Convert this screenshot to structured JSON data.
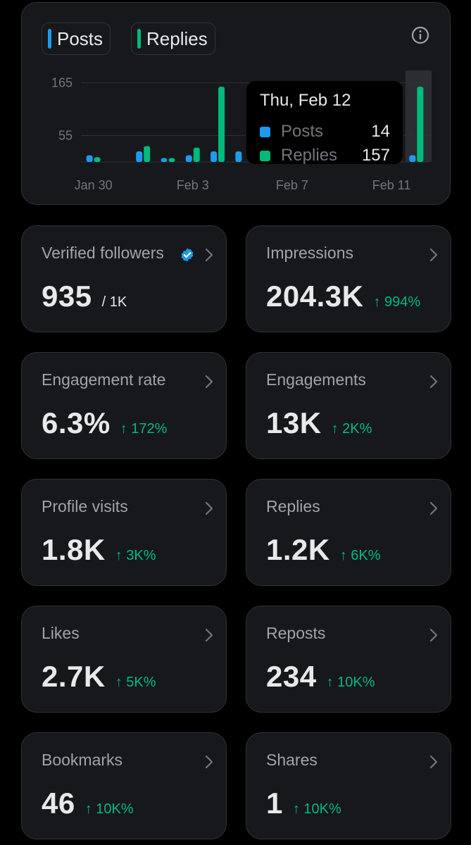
{
  "chart": {
    "legend": {
      "posts_label": "Posts",
      "replies_label": "Replies"
    },
    "colors": {
      "posts": "#1d9bf0",
      "replies": "#00ba7c"
    },
    "y_ticks": [
      "165",
      "55"
    ],
    "x_ticks": [
      "Jan 30",
      "Feb 3",
      "Feb 7",
      "Feb 11"
    ],
    "tooltip": {
      "title": "Thu, Feb 12",
      "posts_label": "Posts",
      "posts_value": "14",
      "replies_label": "Replies",
      "replies_value": "157"
    }
  },
  "chart_data": {
    "type": "bar",
    "categories": [
      "Jan 30",
      "Jan 31",
      "Feb 1",
      "Feb 2",
      "Feb 3",
      "Feb 4",
      "Feb 5",
      "Feb 6",
      "Feb 7",
      "Feb 8",
      "Feb 9",
      "Feb 10",
      "Feb 11",
      "Feb 12"
    ],
    "series": [
      {
        "name": "Posts",
        "values": [
          14,
          0,
          22,
          8,
          14,
          22,
          22,
          12,
          0,
          0,
          0,
          0,
          0,
          14
        ]
      },
      {
        "name": "Replies",
        "values": [
          10,
          0,
          33,
          8,
          30,
          157,
          0,
          60,
          0,
          0,
          0,
          0,
          0,
          157
        ]
      }
    ],
    "y_ticks": [
      55,
      165
    ],
    "ylim": [
      0,
      185
    ],
    "highlight": "Feb 12",
    "grid": true
  },
  "metrics": [
    {
      "label": "Verified followers",
      "value": "935",
      "sub": "/ 1K",
      "change": "",
      "verified": true
    },
    {
      "label": "Impressions",
      "value": "204.3K",
      "sub": "",
      "change": "↑ 994%"
    },
    {
      "label": "Engagement rate",
      "value": "6.3%",
      "sub": "",
      "change": "↑ 172%"
    },
    {
      "label": "Engagements",
      "value": "13K",
      "sub": "",
      "change": "↑ 2K%"
    },
    {
      "label": "Profile visits",
      "value": "1.8K",
      "sub": "",
      "change": "↑ 3K%"
    },
    {
      "label": "Replies",
      "value": "1.2K",
      "sub": "",
      "change": "↑ 6K%"
    },
    {
      "label": "Likes",
      "value": "2.7K",
      "sub": "",
      "change": "↑ 5K%"
    },
    {
      "label": "Reposts",
      "value": "234",
      "sub": "",
      "change": "↑ 10K%"
    },
    {
      "label": "Bookmarks",
      "value": "46",
      "sub": "",
      "change": "↑ 10K%"
    },
    {
      "label": "Shares",
      "value": "1",
      "sub": "",
      "change": "↑ 10K%"
    }
  ]
}
